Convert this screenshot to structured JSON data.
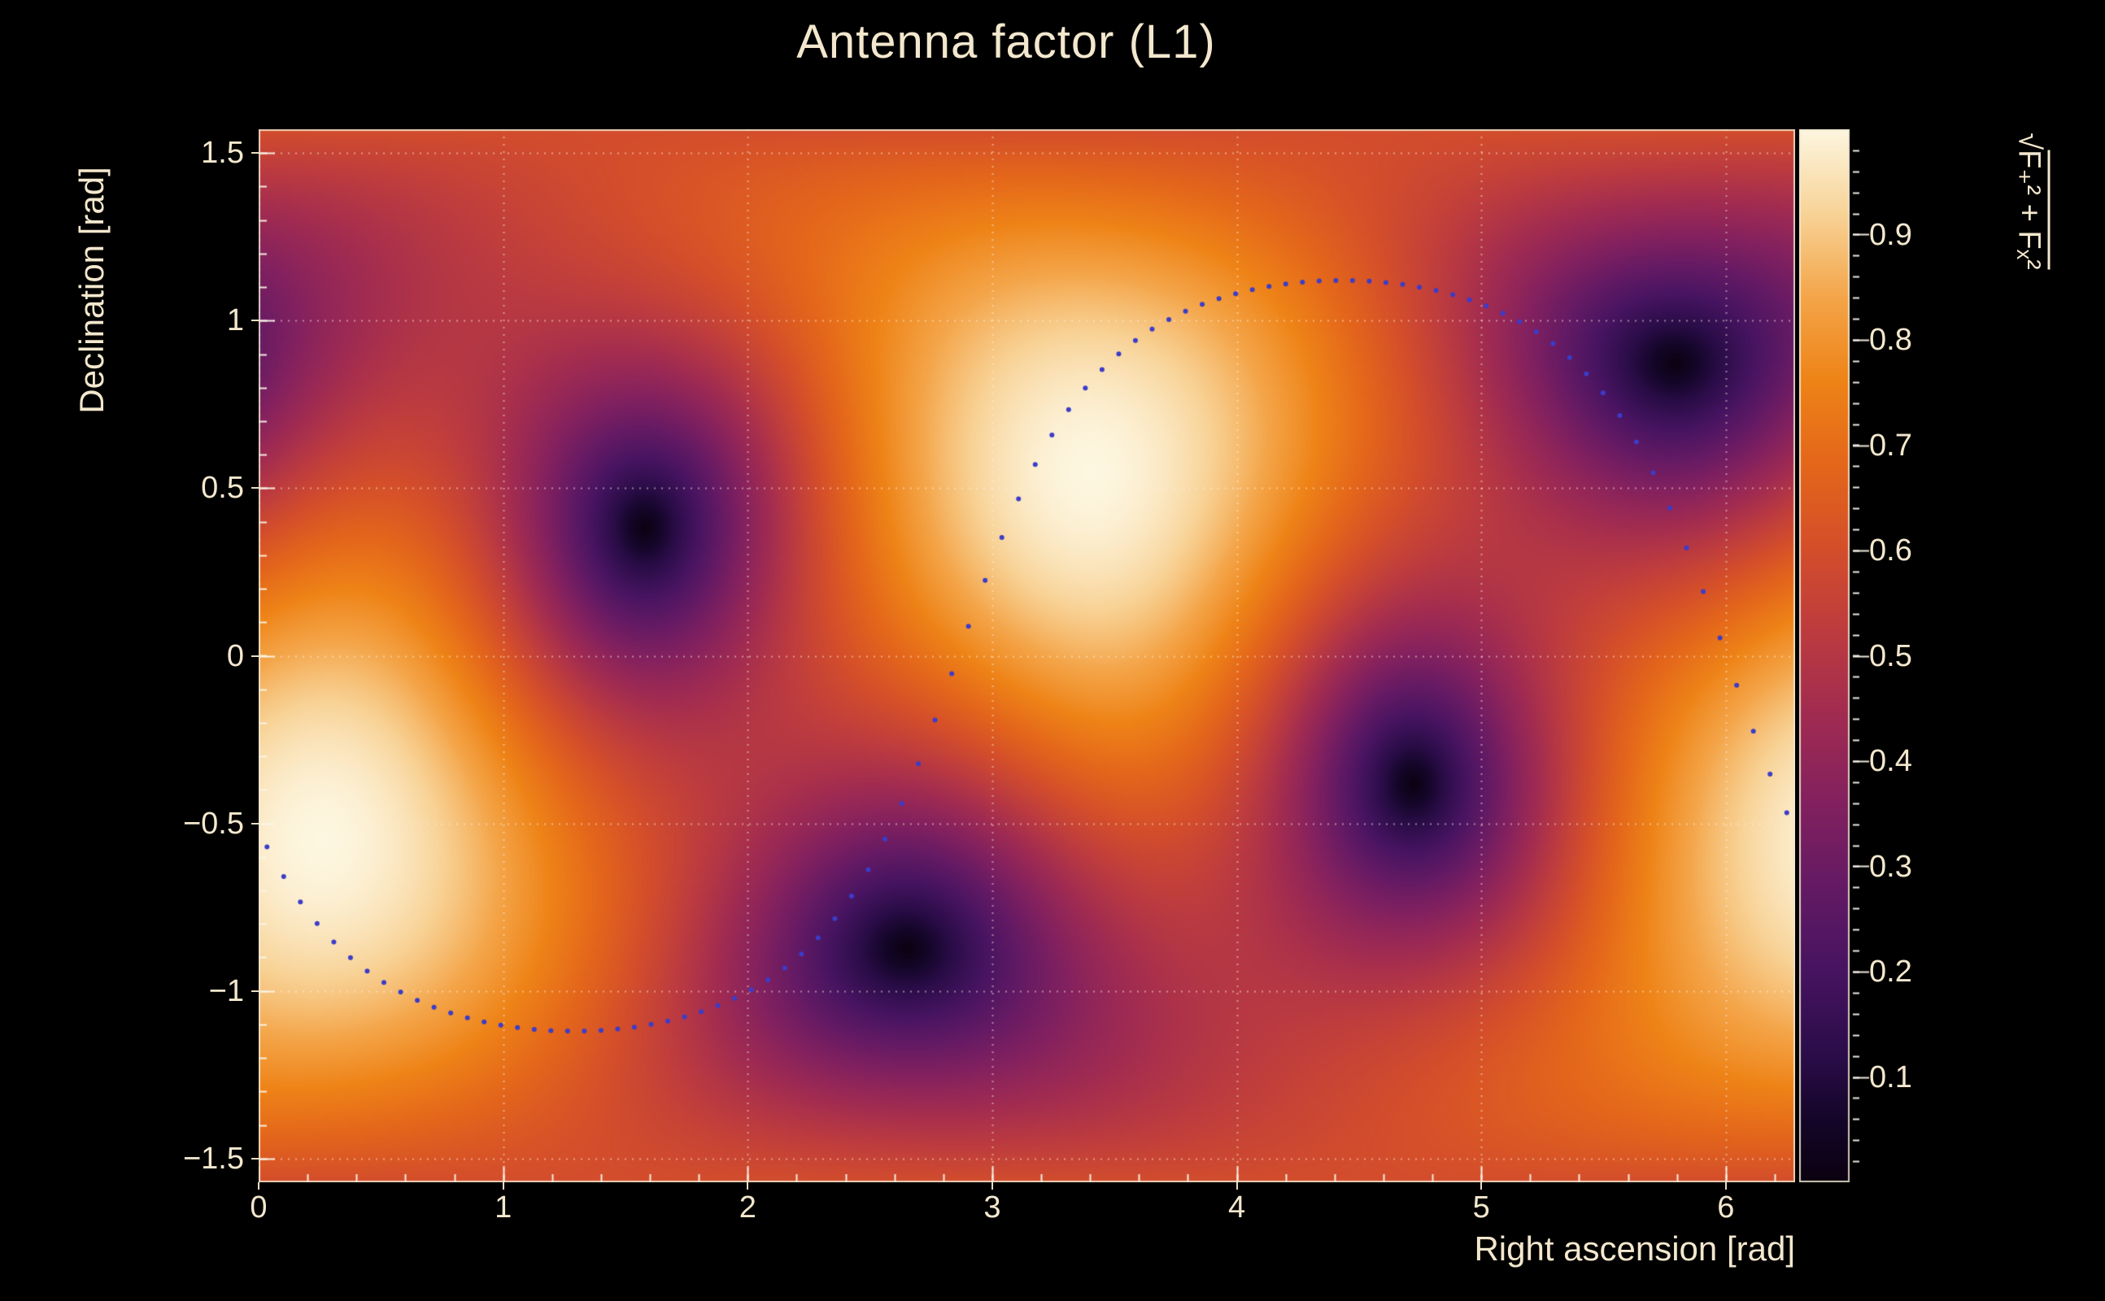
{
  "page": {
    "background": "#000000",
    "text_color": "#f3e7cd",
    "frame_color": "#e9ddc0"
  },
  "chart_data": {
    "type": "heatmap",
    "title": "Antenna factor (L1)",
    "xlabel": "Right ascension [rad]",
    "ylabel": "Declination [rad]",
    "zlabel_radical": "√",
    "zlabel_expr": "F₊² + Fₓ²",
    "x_range": [
      0,
      6.2832
    ],
    "y_range": [
      -1.5708,
      1.5708
    ],
    "z_range": [
      0,
      1
    ],
    "x_ticks": {
      "values": [
        0,
        1,
        2,
        3,
        4,
        5,
        6
      ],
      "labels": [
        "0",
        "1",
        "2",
        "3",
        "4",
        "5",
        "6"
      ]
    },
    "y_ticks": {
      "values": [
        1.5,
        1,
        0.5,
        0,
        -0.5,
        -1,
        -1.5
      ],
      "labels": [
        "1.5",
        "1",
        "0.5",
        "0",
        "−0.5",
        "−1",
        "−1.5"
      ]
    },
    "z_ticks": {
      "values": [
        0.1,
        0.2,
        0.3,
        0.4,
        0.5,
        0.6,
        0.7,
        0.8,
        0.9
      ],
      "labels": [
        "0.1",
        "0.2",
        "0.3",
        "0.4",
        "0.5",
        "0.6",
        "0.7",
        "0.8",
        "0.9"
      ]
    },
    "x_minor_step": 0.2,
    "y_minor_step": 0.1,
    "z_minor_step": 0.02,
    "grid": true,
    "grid_color": "rgba(255,246,228,0.5)",
    "tick_color": "rgba(250,245,232,0.95)",
    "pattern": {
      "quantity": "sqrt(Fplus^2 + Fcross^2) interferometer antenna response",
      "value_at_max": 1.0,
      "value_at_null": 0.0,
      "max_direction_rad": [
        3.4,
        0.55
      ],
      "antipodal_max_rad": [
        0.26,
        -0.55
      ],
      "null_directions_rad": [
        [
          1.6,
          0.4
        ],
        [
          2.65,
          -0.85
        ],
        [
          4.75,
          -0.4
        ],
        [
          5.8,
          0.85
        ]
      ]
    },
    "overlay_track": {
      "style": "dotted",
      "shape": "great-circle",
      "inclination_rad": 1.12,
      "node_rad": 2.86,
      "n_points": 92,
      "dot_radius_px": 3,
      "color": "#3c3cc8"
    },
    "colormap": [
      [
        0.0,
        "#0b0210"
      ],
      [
        0.06,
        "#15062a"
      ],
      [
        0.12,
        "#2b0d49"
      ],
      [
        0.2,
        "#471461"
      ],
      [
        0.28,
        "#641a64"
      ],
      [
        0.36,
        "#83215f"
      ],
      [
        0.44,
        "#a02b52"
      ],
      [
        0.52,
        "#bc3b40"
      ],
      [
        0.6,
        "#d44e2b"
      ],
      [
        0.68,
        "#e4661b"
      ],
      [
        0.76,
        "#ee8317"
      ],
      [
        0.84,
        "#f4a549"
      ],
      [
        0.92,
        "#f8d397"
      ],
      [
        1.0,
        "#fdf6e0"
      ]
    ]
  }
}
